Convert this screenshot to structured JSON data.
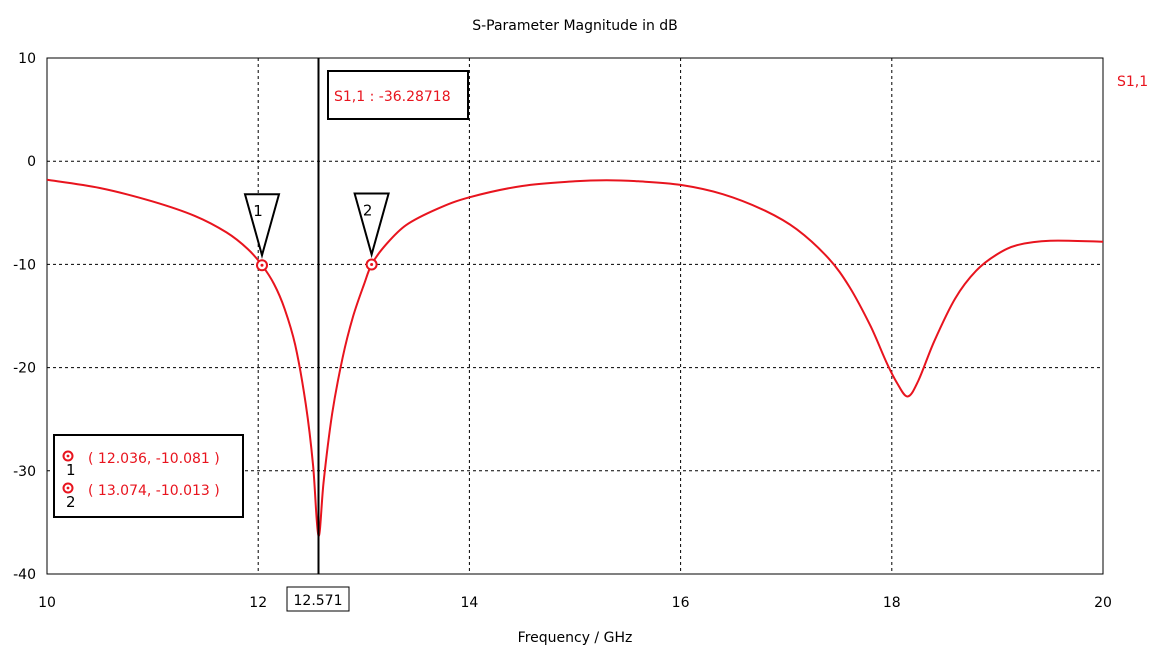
{
  "chart_data": {
    "type": "line",
    "title": "S-Parameter Magnitude in dB",
    "xlabel": "Frequency / GHz",
    "ylabel": "",
    "xlim": [
      10,
      20
    ],
    "ylim": [
      -40,
      10
    ],
    "x_ticks": [
      "10",
      "12",
      "14",
      "16",
      "18",
      "20"
    ],
    "y_ticks": [
      "10",
      "0",
      "-10",
      "-20",
      "-30",
      "-40"
    ],
    "grid": true,
    "colors": {
      "series": "#e8141e",
      "axis": "#000000"
    },
    "series": [
      {
        "name": "S1,1",
        "x": [
          10.0,
          10.5,
          11.0,
          11.4,
          11.7,
          11.9,
          12.036,
          12.15,
          12.25,
          12.35,
          12.45,
          12.52,
          12.571,
          12.62,
          12.7,
          12.8,
          12.9,
          13.0,
          13.074,
          13.2,
          13.4,
          13.7,
          14.0,
          14.5,
          15.0,
          15.3,
          15.6,
          16.0,
          16.4,
          16.8,
          17.1,
          17.4,
          17.6,
          17.8,
          17.95,
          18.05,
          18.15,
          18.25,
          18.4,
          18.6,
          18.8,
          19.0,
          19.2,
          19.5,
          20.0
        ],
        "y": [
          -1.8,
          -2.6,
          -3.9,
          -5.3,
          -6.9,
          -8.5,
          -10.081,
          -11.9,
          -14.3,
          -17.8,
          -23.5,
          -29.5,
          -36.3,
          -31.0,
          -24.5,
          -19.0,
          -15.0,
          -12.0,
          -10.013,
          -8.2,
          -6.2,
          -4.6,
          -3.5,
          -2.4,
          -1.95,
          -1.85,
          -1.95,
          -2.3,
          -3.2,
          -4.8,
          -6.6,
          -9.4,
          -12.2,
          -16.0,
          -19.5,
          -21.5,
          -22.8,
          -21.3,
          -17.5,
          -13.3,
          -10.6,
          -9.0,
          -8.1,
          -7.7,
          -7.8
        ]
      }
    ],
    "markers": [
      {
        "label": "1",
        "x": 12.036,
        "y": -10.081,
        "readout": "( 12.036, -10.081 )"
      },
      {
        "label": "2",
        "x": 13.074,
        "y": -10.013,
        "readout": "( 13.074, -10.013 )"
      }
    ],
    "cursor": {
      "x": 12.571,
      "x_label": "12.571",
      "readout": "S1,1 : -36.28718"
    }
  }
}
